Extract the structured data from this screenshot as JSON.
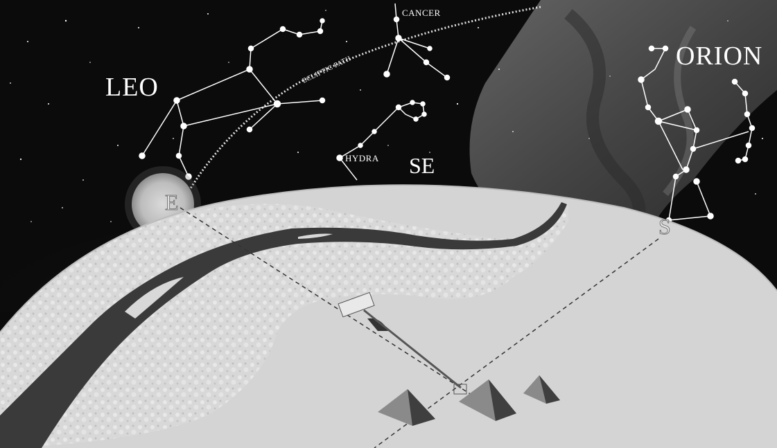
{
  "constellations": {
    "leo": "LEO",
    "cancer": "CANCER",
    "orion": "ORION",
    "hydra": "HYDRA"
  },
  "ecliptic_label": "ECLIPTIC PATH",
  "directions": {
    "east": "E",
    "southeast": "SE",
    "south": "S"
  },
  "colors": {
    "sky": "#0a0a0a",
    "ground": "#dcdcdc",
    "desert": "#c7c7c7",
    "river": "#3c3c3c",
    "star_lines": "#ffffff"
  },
  "icons": [
    "sun-icon",
    "sphinx-icon",
    "pyramid-icon"
  ]
}
